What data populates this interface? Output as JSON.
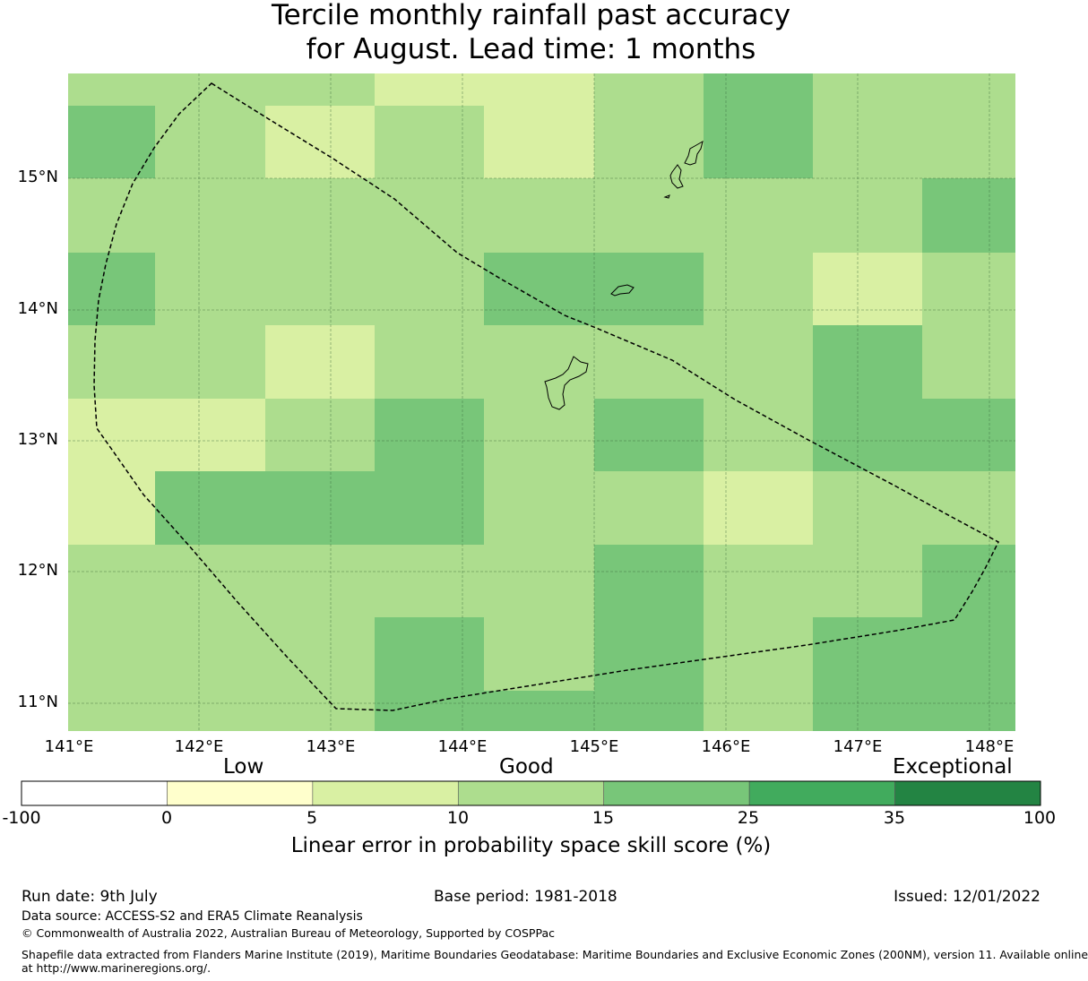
{
  "title_line1": "Tercile monthly rainfall past accuracy",
  "title_line2": "for August. Lead time: 1 months",
  "map": {
    "lat_labels": [
      "15°N",
      "14°N",
      "13°N",
      "12°N",
      "11°N"
    ],
    "lon_labels": [
      "141°E",
      "142°E",
      "143°E",
      "144°E",
      "145°E",
      "146°E",
      "147°E",
      "148°E"
    ],
    "grid_colors": {
      "B": "#d9f0a3",
      "C": "#addd8e",
      "D": "#78c679"
    },
    "grid": [
      [
        "C",
        "C",
        "C",
        "B",
        "B",
        "C",
        "D",
        "C",
        "C"
      ],
      [
        "D",
        "C",
        "B",
        "C",
        "B",
        "C",
        "D",
        "C",
        "C"
      ],
      [
        "C",
        "C",
        "C",
        "C",
        "C",
        "C",
        "C",
        "C",
        "D"
      ],
      [
        "D",
        "C",
        "C",
        "C",
        "D",
        "D",
        "C",
        "B",
        "C"
      ],
      [
        "C",
        "C",
        "B",
        "C",
        "C",
        "C",
        "C",
        "D",
        "C"
      ],
      [
        "B",
        "B",
        "C",
        "D",
        "C",
        "D",
        "C",
        "D",
        "D"
      ],
      [
        "B",
        "D",
        "D",
        "D",
        "C",
        "C",
        "B",
        "C",
        "C"
      ],
      [
        "C",
        "C",
        "C",
        "C",
        "C",
        "D",
        "C",
        "C",
        "D"
      ],
      [
        "C",
        "C",
        "C",
        "D",
        "C",
        "D",
        "C",
        "D",
        "D"
      ],
      [
        "C",
        "C",
        "C",
        "D",
        "D",
        "D",
        "C",
        "D",
        "D"
      ]
    ]
  },
  "colorbar": {
    "category_labels": [
      "Low",
      "Good",
      "Exceptional"
    ],
    "colors": [
      "#ffffff",
      "#ffffcc",
      "#d9f0a3",
      "#addd8e",
      "#78c679",
      "#41ab5d",
      "#238443"
    ],
    "ticks": [
      "-100",
      "0",
      "5",
      "10",
      "15",
      "25",
      "35",
      "100"
    ],
    "title": "Linear error in probability space skill score (%)"
  },
  "footer": {
    "run_date": "Run date: 9th July",
    "base_period": "Base period: 1981-2018",
    "issued": "Issued: 12/01/2022",
    "data_source": "Data source: ACCESS-S2 and ERA5 Climate Reanalysis",
    "copyright": "© Commonwealth of Australia 2022, Australian Bureau of Meteorology, Supported by COSPPac",
    "shapefile_line1": "Shapefile data extracted from Flanders Marine Institute (2019), Maritime Boundaries Geodatabase: Maritime Boundaries and Exclusive Economic Zones (200NM), version 11. Available online",
    "shapefile_line2": "at http://www.marineregions.org/."
  }
}
